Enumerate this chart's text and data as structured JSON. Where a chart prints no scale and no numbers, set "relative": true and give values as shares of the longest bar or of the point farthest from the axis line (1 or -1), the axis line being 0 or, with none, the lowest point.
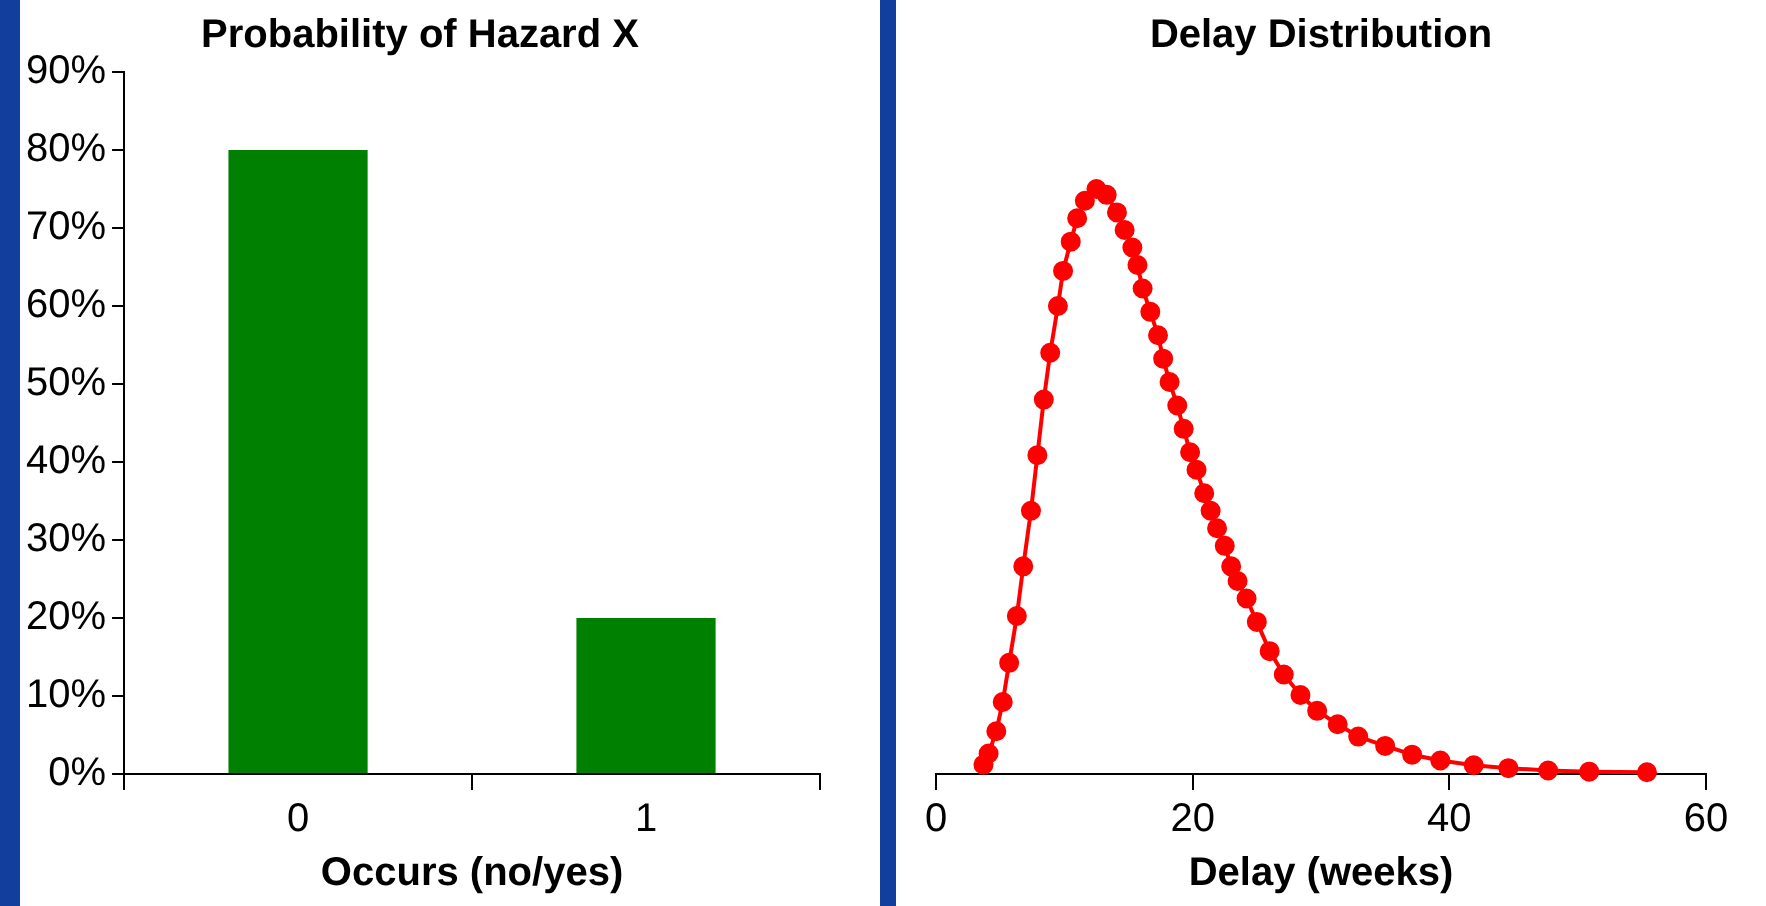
{
  "chart_data": [
    {
      "type": "bar",
      "title": "Probability of Hazard X",
      "xlabel": "Occurs (no/yes)",
      "categories": [
        "0",
        "1"
      ],
      "values": [
        80,
        20
      ],
      "color": "#008000",
      "ylim": [
        0,
        90
      ],
      "yticks": [
        {
          "value": 0,
          "label": "0%"
        },
        {
          "value": 10,
          "label": "10%"
        },
        {
          "value": 20,
          "label": "20%"
        },
        {
          "value": 30,
          "label": "30%"
        },
        {
          "value": 40,
          "label": "40%"
        },
        {
          "value": 50,
          "label": "50%"
        },
        {
          "value": 60,
          "label": "60%"
        },
        {
          "value": 70,
          "label": "70%"
        },
        {
          "value": 80,
          "label": "80%"
        },
        {
          "value": 90,
          "label": "90%"
        }
      ],
      "grid": false,
      "legend": false
    },
    {
      "type": "line",
      "title": "Delay Distribution",
      "xlabel": "Delay (weeks)",
      "relative": true,
      "tick_labels": "x",
      "marker": "circle",
      "line_style": "solid",
      "grid": false,
      "legend": false,
      "xlim": [
        0,
        60
      ],
      "xticks": [
        0,
        20,
        40,
        60
      ],
      "color": "#ff0000",
      "x": [
        3.7,
        4.1,
        4.7,
        5.2,
        5.7,
        6.3,
        6.8,
        7.4,
        7.9,
        8.4,
        8.9,
        9.5,
        9.9,
        10.5,
        11.0,
        11.6,
        12.5,
        13.3,
        14.1,
        14.7,
        15.3,
        15.7,
        16.1,
        16.7,
        17.3,
        17.7,
        18.2,
        18.8,
        19.3,
        19.8,
        20.3,
        20.9,
        21.4,
        21.9,
        22.5,
        23.0,
        23.5,
        24.2,
        25.0,
        26.0,
        27.1,
        28.4,
        29.7,
        31.3,
        32.9,
        35.0,
        37.1,
        39.3,
        41.9,
        44.6,
        47.7,
        50.9,
        55.4
      ],
      "values": [
        0.016,
        0.035,
        0.073,
        0.123,
        0.19,
        0.27,
        0.355,
        0.45,
        0.545,
        0.64,
        0.72,
        0.8,
        0.86,
        0.91,
        0.95,
        0.98,
        1.0,
        0.99,
        0.96,
        0.93,
        0.9,
        0.87,
        0.83,
        0.79,
        0.75,
        0.71,
        0.67,
        0.63,
        0.59,
        0.55,
        0.52,
        0.48,
        0.45,
        0.42,
        0.39,
        0.355,
        0.33,
        0.3,
        0.26,
        0.21,
        0.17,
        0.135,
        0.108,
        0.085,
        0.064,
        0.048,
        0.033,
        0.023,
        0.015,
        0.01,
        0.006,
        0.004,
        0.003
      ]
    }
  ]
}
